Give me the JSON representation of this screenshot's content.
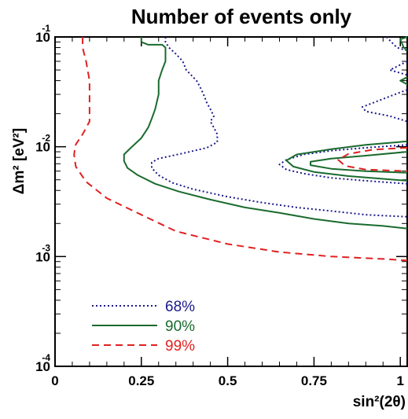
{
  "chart_data": {
    "type": "line",
    "title": "Number of events only",
    "xlabel": "sin²(2θ)",
    "ylabel": "Δm² [eV²]",
    "xscale": "linear",
    "yscale": "log",
    "xlim": [
      0,
      1.02
    ],
    "ylim": [
      0.0001,
      0.1
    ],
    "grid": false,
    "legend_position": "bottom-left",
    "x_ticks": [
      "0",
      "0.25",
      "0.5",
      "0.75",
      "1"
    ],
    "y_ticks": [
      {
        "base": "10",
        "exp": "-4"
      },
      {
        "base": "10",
        "exp": "-3"
      },
      {
        "base": "10",
        "exp": "-2"
      },
      {
        "base": "10",
        "exp": "-1"
      }
    ],
    "series": [
      {
        "name": "68%",
        "color": "#1a1a8c",
        "style": "dotted",
        "segments": [
          [
            [
              0.32,
              0.1
            ],
            [
              0.32,
              0.09
            ],
            [
              0.33,
              0.08
            ],
            [
              0.35,
              0.07
            ],
            [
              0.37,
              0.06
            ],
            [
              0.38,
              0.05
            ],
            [
              0.41,
              0.04
            ],
            [
              0.42,
              0.035
            ],
            [
              0.43,
              0.03
            ],
            [
              0.44,
              0.025
            ],
            [
              0.45,
              0.022
            ],
            [
              0.46,
              0.019
            ],
            [
              0.45,
              0.017
            ],
            [
              0.46,
              0.015
            ],
            [
              0.47,
              0.013
            ],
            [
              0.47,
              0.011
            ],
            [
              0.44,
              0.0098
            ],
            [
              0.37,
              0.0087
            ],
            [
              0.3,
              0.0078
            ],
            [
              0.28,
              0.0072
            ],
            [
              0.28,
              0.0064
            ],
            [
              0.3,
              0.0055
            ],
            [
              0.34,
              0.0047
            ],
            [
              0.4,
              0.0041
            ],
            [
              0.5,
              0.0035
            ],
            [
              0.6,
              0.0031
            ],
            [
              0.7,
              0.0028
            ],
            [
              0.8,
              0.0026
            ],
            [
              0.9,
              0.0024
            ],
            [
              1.02,
              0.0023
            ]
          ],
          [
            [
              1.02,
              0.0104
            ],
            [
              0.9,
              0.0098
            ],
            [
              0.8,
              0.0092
            ],
            [
              0.72,
              0.0085
            ],
            [
              0.67,
              0.0076
            ],
            [
              0.65,
              0.0069
            ],
            [
              0.67,
              0.0062
            ],
            [
              0.72,
              0.0057
            ],
            [
              0.8,
              0.0052
            ],
            [
              0.9,
              0.0049
            ],
            [
              1.02,
              0.0046
            ]
          ],
          [
            [
              0.96,
              0.1
            ],
            [
              0.99,
              0.08
            ],
            [
              1.02,
              0.075
            ]
          ],
          [
            [
              1.02,
              0.06
            ],
            [
              0.97,
              0.05
            ],
            [
              1.02,
              0.045
            ]
          ],
          [
            [
              1.02,
              0.033
            ],
            [
              0.96,
              0.028
            ],
            [
              0.89,
              0.023
            ],
            [
              0.9,
              0.021
            ],
            [
              0.97,
              0.019
            ],
            [
              1.02,
              0.017
            ]
          ]
        ]
      },
      {
        "name": "90%",
        "color": "#1a6b2e",
        "style": "solid",
        "segments": [
          [
            [
              0.25,
              0.1
            ],
            [
              0.25,
              0.09
            ],
            [
              0.27,
              0.085
            ],
            [
              0.31,
              0.085
            ],
            [
              0.32,
              0.08
            ],
            [
              0.32,
              0.06
            ],
            [
              0.31,
              0.05
            ],
            [
              0.3,
              0.04
            ],
            [
              0.3,
              0.03
            ],
            [
              0.29,
              0.022
            ],
            [
              0.28,
              0.018
            ],
            [
              0.27,
              0.015
            ],
            [
              0.25,
              0.012
            ],
            [
              0.22,
              0.0098
            ],
            [
              0.2,
              0.0085
            ],
            [
              0.2,
              0.0074
            ],
            [
              0.21,
              0.0064
            ],
            [
              0.24,
              0.0055
            ],
            [
              0.29,
              0.0046
            ],
            [
              0.36,
              0.0039
            ],
            [
              0.45,
              0.0033
            ],
            [
              0.55,
              0.0028
            ],
            [
              0.65,
              0.0025
            ],
            [
              0.75,
              0.0022
            ],
            [
              0.85,
              0.002
            ],
            [
              0.95,
              0.0019
            ],
            [
              1.02,
              0.0018
            ]
          ],
          [
            [
              1.02,
              0.0112
            ],
            [
              0.9,
              0.0104
            ],
            [
              0.8,
              0.0095
            ],
            [
              0.7,
              0.0085
            ],
            [
              0.67,
              0.0075
            ],
            [
              0.69,
              0.0066
            ],
            [
              0.75,
              0.0059
            ],
            [
              0.85,
              0.0054
            ],
            [
              0.95,
              0.0051
            ],
            [
              1.02,
              0.0049
            ]
          ],
          [
            [
              1.02,
              0.009
            ],
            [
              0.9,
              0.0083
            ],
            [
              0.8,
              0.0078
            ],
            [
              0.74,
              0.0073
            ],
            [
              0.74,
              0.0068
            ],
            [
              0.8,
              0.0063
            ],
            [
              0.9,
              0.006
            ],
            [
              1.02,
              0.0058
            ]
          ],
          [
            [
              1.02,
              0.1
            ],
            [
              1.0,
              0.095
            ],
            [
              1.01,
              0.08
            ],
            [
              1.02,
              0.075
            ]
          ],
          [
            [
              1.02,
              0.043
            ],
            [
              1.0,
              0.04
            ],
            [
              1.02,
              0.037
            ]
          ]
        ]
      },
      {
        "name": "99%",
        "color": "#e02020",
        "style": "dashed",
        "segments": [
          [
            [
              0.08,
              0.1
            ],
            [
              0.08,
              0.08
            ],
            [
              0.09,
              0.06
            ],
            [
              0.1,
              0.04
            ],
            [
              0.1,
              0.025
            ],
            [
              0.1,
              0.017
            ],
            [
              0.08,
              0.013
            ],
            [
              0.06,
              0.0105
            ],
            [
              0.055,
              0.0085
            ],
            [
              0.06,
              0.0066
            ],
            [
              0.09,
              0.0048
            ],
            [
              0.15,
              0.0034
            ],
            [
              0.25,
              0.0024
            ],
            [
              0.35,
              0.0017
            ],
            [
              0.5,
              0.0013
            ],
            [
              0.65,
              0.0011
            ],
            [
              0.8,
              0.001
            ],
            [
              0.95,
              0.00095
            ],
            [
              1.02,
              0.00092
            ]
          ],
          [
            [
              1.02,
              0.0098
            ],
            [
              0.92,
              0.0094
            ],
            [
              0.85,
              0.0086
            ],
            [
              0.82,
              0.0076
            ],
            [
              0.84,
              0.0067
            ],
            [
              0.9,
              0.0062
            ],
            [
              1.02,
              0.006
            ]
          ]
        ]
      }
    ]
  },
  "legend": {
    "entries": [
      {
        "label": "68%",
        "color": "#1a1a8c",
        "style": "dotted"
      },
      {
        "label": "90%",
        "color": "#1a6b2e",
        "style": "solid"
      },
      {
        "label": "99%",
        "color": "#e02020",
        "style": "dashed"
      }
    ]
  }
}
